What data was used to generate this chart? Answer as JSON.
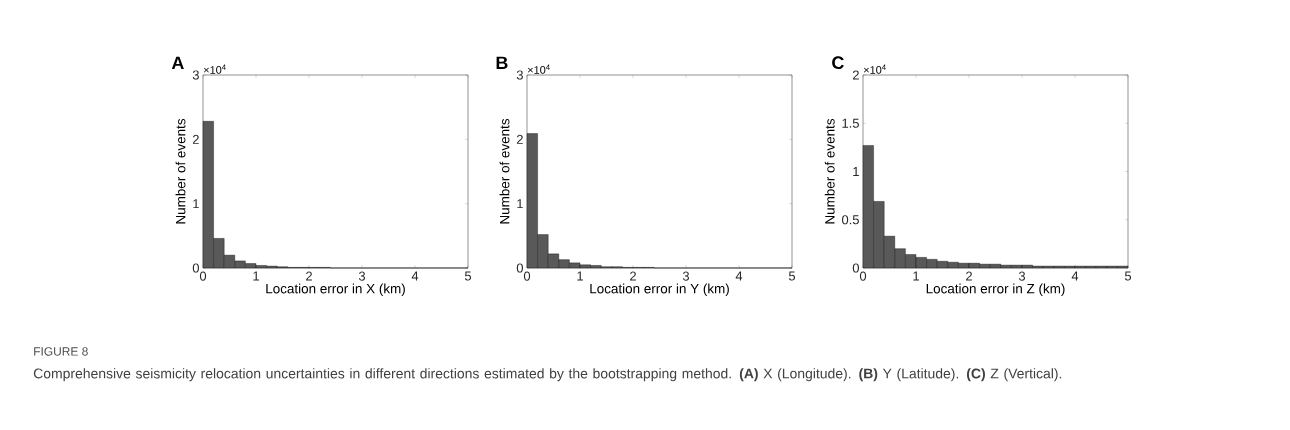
{
  "chart_data": [
    {
      "type": "histogram",
      "title": "A",
      "xlabel": "Location error in X (km)",
      "ylabel": "Number of events",
      "color": "#595959",
      "bins": [
        0,
        0.2,
        0.4,
        0.6,
        0.8,
        1.0,
        1.2,
        1.4,
        1.6,
        1.8,
        2.0,
        2.2,
        2.4,
        2.6,
        2.8,
        3.0,
        3.2,
        3.4,
        3.6,
        3.8,
        4.0,
        4.2,
        4.4,
        4.6,
        4.8,
        5.0
      ],
      "values": [
        2.28,
        0.46,
        0.2,
        0.11,
        0.07,
        0.04,
        0.03,
        0.02,
        0.01,
        0.01,
        0.01,
        0.01,
        0,
        0,
        0,
        0,
        0,
        0,
        0,
        0,
        0,
        0,
        0,
        0,
        0
      ],
      "xlim": [
        0,
        5
      ],
      "xticks": [
        0,
        1,
        2,
        3,
        4,
        5
      ],
      "ylim": [
        0,
        3
      ],
      "yticks": [
        0,
        1,
        2,
        3
      ],
      "annotations": [
        "×10$^{4}$",
        "FIGURE 8",
        "Comprehensive seismicity relocation uncertainties in different directions estimated by the bootstrapping method. **(A)** X (Longitude). **(B)** Y (Latitude). **(C)** Z (Vertical)."
      ]
    },
    {
      "type": "histogram",
      "title": "B",
      "xlabel": "Location error in Y (km)",
      "ylabel": "Number of events",
      "color": "#595959",
      "bins": [
        0,
        0.2,
        0.4,
        0.6,
        0.8,
        1.0,
        1.2,
        1.4,
        1.6,
        1.8,
        2.0,
        2.2,
        2.4,
        2.6,
        2.8,
        3.0,
        3.2,
        3.4,
        3.6,
        3.8,
        4.0,
        4.2,
        4.4,
        4.6,
        4.8,
        5.0
      ],
      "values": [
        2.09,
        0.52,
        0.22,
        0.13,
        0.08,
        0.05,
        0.04,
        0.02,
        0.02,
        0.01,
        0.01,
        0.01,
        0,
        0,
        0,
        0,
        0,
        0,
        0,
        0,
        0,
        0,
        0,
        0,
        0
      ],
      "xlim": [
        0,
        5
      ],
      "xticks": [
        0,
        1,
        2,
        3,
        4,
        5
      ],
      "ylim": [
        0,
        3
      ],
      "yticks": [
        0,
        1,
        2,
        3
      ],
      "annotations": [
        "×10$^{4}$"
      ]
    },
    {
      "type": "histogram",
      "title": "C",
      "xlabel": "Location error in Z (km)",
      "ylabel": "Number of events",
      "color": "#595959",
      "bins": [
        0,
        0.2,
        0.4,
        0.6,
        0.8,
        1.0,
        1.2,
        1.4,
        1.6,
        1.8,
        2.0,
        2.2,
        2.4,
        2.6,
        2.8,
        3.0,
        3.2,
        3.4,
        3.6,
        3.8,
        4.0,
        4.2,
        4.4,
        4.6,
        4.8,
        5.0
      ],
      "values": [
        1.27,
        0.69,
        0.33,
        0.2,
        0.14,
        0.11,
        0.09,
        0.07,
        0.06,
        0.05,
        0.05,
        0.04,
        0.04,
        0.03,
        0.03,
        0.03,
        0.02,
        0.02,
        0.02,
        0.02,
        0.02,
        0.02,
        0.02,
        0.02,
        0.02
      ],
      "xlim": [
        0,
        5
      ],
      "xticks": [
        0,
        1,
        2,
        3,
        4,
        5
      ],
      "ylim": [
        0,
        2
      ],
      "yticks": [
        0,
        0.5,
        1,
        1.5,
        2
      ],
      "annotations": [
        "×10$^{4}$"
      ]
    }
  ]
}
